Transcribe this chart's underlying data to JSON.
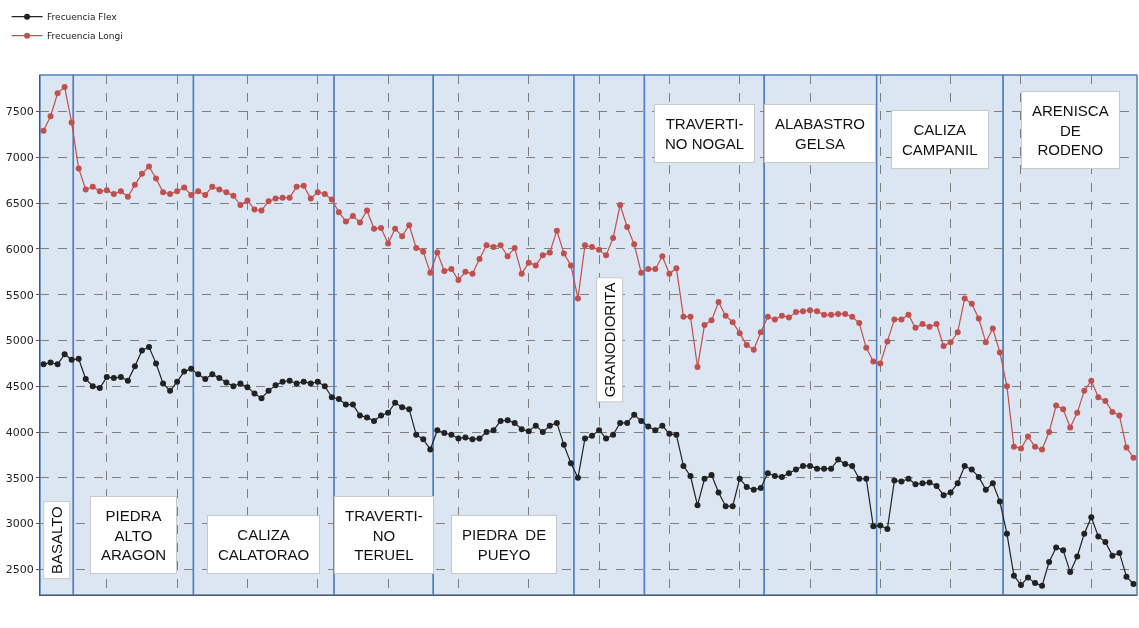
{
  "chart_data": {
    "type": "line",
    "categories": [
      null,
      null,
      null,
      null,
      null,
      null,
      null,
      null,
      null,
      null,
      null,
      null,
      null,
      null,
      null,
      null,
      null,
      null,
      null,
      null,
      null,
      null,
      null,
      null,
      null,
      null,
      null,
      null,
      null,
      null,
      null,
      null,
      null,
      null,
      null,
      null,
      null,
      null,
      null,
      null,
      null,
      null,
      null,
      null,
      null,
      null,
      null,
      null,
      null,
      null,
      null,
      null,
      null,
      null,
      null,
      null,
      null,
      null,
      null,
      null,
      null,
      null,
      null,
      null,
      null,
      null,
      null,
      null,
      null,
      null,
      null,
      null,
      null,
      null,
      null,
      null,
      null,
      null,
      null,
      null,
      null,
      null,
      null,
      null,
      null,
      null,
      null,
      null,
      null,
      null,
      null,
      null,
      null,
      null,
      null,
      null,
      null,
      null,
      null,
      null,
      null,
      null,
      null,
      null,
      null,
      null,
      null,
      null,
      null,
      null,
      null,
      null,
      null,
      null,
      null,
      null,
      null,
      null,
      null,
      null,
      null,
      null,
      null,
      null,
      null,
      null,
      null,
      null,
      null,
      null,
      null,
      null,
      null,
      null,
      null,
      null,
      null,
      null,
      null,
      null,
      null,
      null,
      null,
      null,
      null,
      null,
      null,
      null,
      null,
      null,
      null,
      null,
      null,
      null,
      null,
      null
    ],
    "series": [
      {
        "name": "Frecuencia Flex",
        "color": "#222222",
        "values": [
          4740,
          4760,
          4740,
          4850,
          4790,
          4800,
          4580,
          4500,
          4480,
          4600,
          4590,
          4600,
          4560,
          4720,
          4890,
          4930,
          4750,
          4530,
          4450,
          4550,
          4660,
          4690,
          4630,
          4580,
          4630,
          4590,
          4540,
          4500,
          4530,
          4490,
          4420,
          4370,
          4450,
          4510,
          4550,
          4560,
          4530,
          4550,
          4530,
          4550,
          4500,
          4380,
          4360,
          4300,
          4300,
          4180,
          4160,
          4120,
          4180,
          4210,
          4320,
          4270,
          4250,
          3970,
          3920,
          3810,
          4020,
          3990,
          3970,
          3930,
          3940,
          3920,
          3930,
          4000,
          4020,
          4120,
          4130,
          4100,
          4030,
          4010,
          4070,
          4000,
          4070,
          4100,
          3860,
          3660,
          3500,
          3930,
          3960,
          4020,
          3930,
          3970,
          4100,
          4100,
          4190,
          4120,
          4060,
          4020,
          4070,
          3980,
          3970,
          3630,
          3520,
          3200,
          3490,
          3530,
          3340,
          3190,
          3190,
          3490,
          3400,
          3370,
          3390,
          3550,
          3520,
          3510,
          3550,
          3590,
          3630,
          3630,
          3600,
          3600,
          3600,
          3700,
          3650,
          3630,
          3490,
          3490,
          2970,
          2980,
          2940,
          3470,
          3460,
          3490,
          3430,
          3440,
          3450,
          3410,
          3310,
          3340,
          3440,
          3630,
          3590,
          3510,
          3370,
          3440,
          3240,
          2890,
          2430,
          2330,
          2410,
          2350,
          2320,
          2580,
          2740,
          2710,
          2470,
          2640,
          2890,
          3070,
          2860,
          2800,
          2650,
          2680,
          2420,
          2340
        ]
      },
      {
        "name": "Frecuencia Longi",
        "color": "#c0504d",
        "values": [
          7290,
          7450,
          7700,
          7770,
          7380,
          6880,
          6650,
          6680,
          6630,
          6640,
          6600,
          6630,
          6570,
          6700,
          6820,
          6900,
          6770,
          6620,
          6600,
          6630,
          6670,
          6590,
          6630,
          6590,
          6680,
          6650,
          6620,
          6580,
          6480,
          6530,
          6430,
          6420,
          6520,
          6550,
          6560,
          6560,
          6680,
          6690,
          6550,
          6620,
          6600,
          6540,
          6400,
          6300,
          6360,
          6290,
          6420,
          6220,
          6230,
          6060,
          6220,
          6140,
          6260,
          6010,
          5970,
          5740,
          5960,
          5760,
          5780,
          5660,
          5750,
          5730,
          5890,
          6040,
          6020,
          6040,
          5920,
          6010,
          5730,
          5850,
          5820,
          5930,
          5960,
          6200,
          5950,
          5820,
          5460,
          6040,
          6020,
          5990,
          5930,
          6120,
          6480,
          6240,
          6050,
          5740,
          5780,
          5780,
          5920,
          5730,
          5790,
          5260,
          5260,
          4710,
          5170,
          5220,
          5420,
          5270,
          5200,
          5080,
          4950,
          4900,
          5090,
          5260,
          5230,
          5270,
          5250,
          5310,
          5320,
          5330,
          5320,
          5280,
          5280,
          5290,
          5290,
          5260,
          5190,
          4920,
          4770,
          4750,
          4990,
          5230,
          5230,
          5280,
          5140,
          5180,
          5150,
          5180,
          4940,
          4980,
          5090,
          5460,
          5400,
          5240,
          4980,
          5130,
          4870,
          4500,
          3840,
          3820,
          3950,
          3840,
          3810,
          4000,
          4290,
          4250,
          4050,
          4210,
          4450,
          4560,
          4380,
          4340,
          4220,
          4180,
          3830,
          3720
        ]
      }
    ],
    "ylim": [
      2220,
      7900
    ],
    "yticks": [
      2500,
      3000,
      3500,
      4000,
      4500,
      5000,
      5500,
      6000,
      6500,
      7000,
      7500
    ],
    "tick_labels": "y",
    "grid": true,
    "legend": "top left",
    "marker": "circle",
    "line_style": "solid",
    "annotations": [
      "BASALTO",
      "PIEDRA\nALTO\nARAGON",
      "CALIZA\nCALATORAO",
      "TRAVERTI-\nNO\nTERUEL",
      "PIEDRA  DE\nPUEYO",
      "GRANODIORITA",
      "TRAVERTI-\nNO NOGAL",
      "ALABASTRO\nGELSA",
      "CALIZA\nCAMPANIL",
      "ARENISCA\nDE\nRODENO"
    ]
  }
}
